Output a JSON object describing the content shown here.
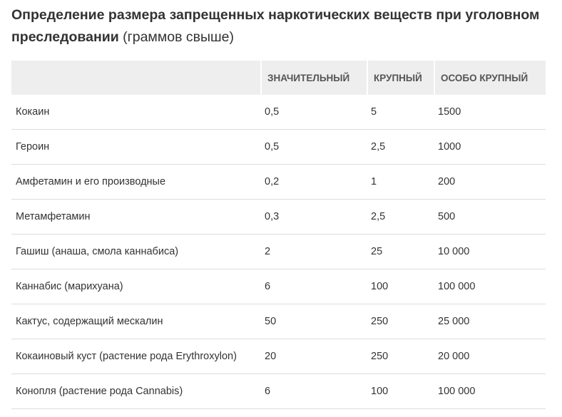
{
  "title": {
    "bold": "Определение размера запрещенных наркотических веществ при уголовном преследовании",
    "normal": "(граммов свыше)"
  },
  "table": {
    "headers": [
      "",
      "Значительный",
      "Крупный",
      "Особо крупный"
    ],
    "rows": [
      [
        "Кокаин",
        "0,5",
        "5",
        "1500"
      ],
      [
        "Героин",
        "0,5",
        "2,5",
        "1000"
      ],
      [
        "Амфетамин и его производные",
        "0,2",
        "1",
        "200"
      ],
      [
        "Метамфетамин",
        "0,3",
        "2,5",
        "500"
      ],
      [
        "Гашиш (анаша, смола каннабиса)",
        "2",
        "25",
        "10 000"
      ],
      [
        "Каннабис (марихуана)",
        "6",
        "100",
        "100 000"
      ],
      [
        "Кактус, содержащий мескалин",
        "50",
        "250",
        "25 000"
      ],
      [
        "Кокаиновый куст (растение рода Erythroxylon)",
        "20",
        "250",
        "20 000"
      ],
      [
        "Конопля (растение рода Cannabis)",
        "6",
        "100",
        "100 000"
      ]
    ]
  }
}
